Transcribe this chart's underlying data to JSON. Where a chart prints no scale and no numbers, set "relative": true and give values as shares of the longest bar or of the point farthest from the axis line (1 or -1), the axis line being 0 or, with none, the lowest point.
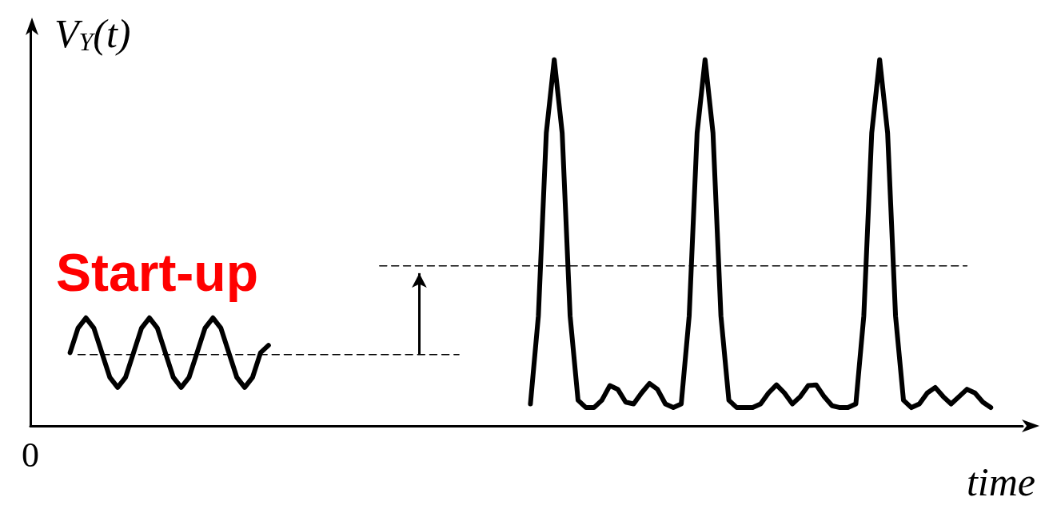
{
  "chart_data": {
    "type": "line",
    "relative": true,
    "ylabel": "V$_{Y}$(t)",
    "xlabel": "time",
    "grid": false,
    "marker": "none",
    "line_style": "solid",
    "annotations": [
      "Start-up",
      "0"
    ],
    "categories": [
      null,
      null,
      null,
      null,
      null,
      null,
      null,
      null,
      null,
      null,
      null,
      null,
      null,
      null,
      null,
      null,
      null,
      null,
      null,
      null,
      null,
      null,
      null,
      null,
      null,
      null,
      null,
      null,
      null,
      null,
      null,
      null,
      null,
      null,
      null,
      null,
      null,
      null,
      null,
      null,
      null,
      null,
      null,
      null,
      null,
      null,
      null,
      null,
      null,
      null,
      null,
      null,
      null,
      null,
      null,
      null,
      null,
      null,
      null,
      null,
      null,
      null,
      null,
      null,
      null,
      null,
      null,
      null,
      null,
      null,
      null,
      null,
      null,
      null,
      null,
      null,
      null,
      null,
      null,
      null,
      null,
      null,
      null,
      null,
      null,
      null,
      null,
      null,
      null,
      null,
      null,
      null,
      null,
      null,
      null,
      null,
      null,
      null,
      null,
      null,
      null,
      null,
      null,
      null,
      null,
      null,
      null,
      null,
      null,
      null,
      null,
      null,
      null,
      null,
      null,
      null,
      null,
      null,
      null,
      null,
      null,
      null,
      null,
      null,
      null,
      null
    ],
    "series": [
      {
        "color": "#000000",
        "values": [
          null,
          null,
          null,
          null,
          null,
          0.2,
          0.267,
          0.295,
          0.267,
          0.2,
          0.133,
          0.105,
          0.133,
          0.2,
          0.267,
          0.295,
          0.267,
          0.2,
          0.133,
          0.105,
          0.133,
          0.2,
          0.267,
          0.295,
          0.267,
          0.2,
          0.133,
          0.105,
          0.133,
          0.2,
          0.22,
          null,
          null,
          null,
          null,
          null,
          null,
          null,
          null,
          null,
          null,
          null,
          null,
          null,
          null,
          null,
          null,
          null,
          null,
          null,
          null,
          null,
          null,
          null,
          null,
          null,
          null,
          null,
          null,
          null,
          null,
          null,
          null,
          null,
          null,
          null,
          null,
          null,
          null,
          null,
          null,
          null,
          null,
          null,
          null,
          null,
          null,
          null,
          null,
          null,
          null,
          null,
          null,
          null,
          null,
          null,
          null,
          null,
          null,
          null,
          null,
          null,
          null,
          null,
          null,
          null,
          null,
          null,
          null,
          null,
          null,
          null,
          null,
          null,
          null,
          null,
          null,
          null,
          null,
          null,
          null,
          null,
          null,
          null,
          null,
          null,
          null,
          null,
          null,
          null,
          null,
          null,
          null,
          null,
          null,
          null
        ]
      },
      {
        "color": "#000000",
        "values": [
          null,
          null,
          null,
          null,
          null,
          null,
          null,
          null,
          null,
          null,
          null,
          null,
          null,
          null,
          null,
          null,
          null,
          null,
          null,
          null,
          null,
          null,
          null,
          null,
          null,
          null,
          null,
          null,
          null,
          null,
          null,
          null,
          null,
          null,
          null,
          null,
          null,
          null,
          null,
          null,
          null,
          null,
          null,
          null,
          null,
          null,
          null,
          null,
          null,
          null,
          null,
          null,
          null,
          null,
          null,
          null,
          null,
          null,
          null,
          null,
          null,
          null,
          null,
          0.06,
          0.3,
          0.8,
          1,
          0.8,
          0.3,
          0.07,
          0.05,
          0.05,
          0.07,
          0.11,
          0.1,
          0.065,
          0.06,
          0.09,
          0.116,
          0.1,
          0.06,
          0.05,
          0.06,
          0.3,
          0.8,
          1,
          0.8,
          0.3,
          0.07,
          0.05,
          0.05,
          0.05,
          0.06,
          0.09,
          0.112,
          0.09,
          0.06,
          0.08,
          0.11,
          0.112,
          0.08,
          0.055,
          0.05,
          0.05,
          0.06,
          0.3,
          0.8,
          1,
          0.8,
          0.3,
          0.07,
          0.05,
          0.06,
          0.09,
          0.105,
          0.08,
          0.06,
          0.08,
          0.1,
          0.09,
          0.065,
          0.05,
          null,
          null,
          null,
          null
        ]
      },
      {
        "color": "#000000",
        "line_style": "dashed",
        "values": [
          null,
          null,
          null,
          null,
          null,
          null,
          0.195,
          0.195,
          0.195,
          0.195,
          0.195,
          0.195,
          0.195,
          0.195,
          0.195,
          0.195,
          0.195,
          0.195,
          0.195,
          0.195,
          0.195,
          0.195,
          0.195,
          0.195,
          0.195,
          0.195,
          0.195,
          0.195,
          0.195,
          0.195,
          0.195,
          0.195,
          0.195,
          0.195,
          0.195,
          0.195,
          0.195,
          0.195,
          0.195,
          0.195,
          0.195,
          0.195,
          0.195,
          0.195,
          0.195,
          0.195,
          0.195,
          0.195,
          0.195,
          0.195,
          0.195,
          0.195,
          0.195,
          0.195,
          0.195,
          null,
          null,
          null,
          null,
          null,
          null,
          null,
          null,
          null,
          null,
          null,
          null,
          null,
          null,
          null,
          null,
          null,
          null,
          null,
          null,
          null,
          null,
          null,
          null,
          null,
          null,
          null,
          null,
          null,
          null,
          null,
          null,
          null,
          null,
          null,
          null,
          null,
          null,
          null,
          null,
          null,
          null,
          null,
          null,
          null,
          null,
          null,
          null,
          null,
          null,
          null,
          null,
          null,
          null,
          null,
          null,
          null,
          null,
          null,
          null,
          null,
          null,
          null,
          null,
          null,
          null,
          null,
          null,
          null,
          null,
          null
        ]
      },
      {
        "color": "#000000",
        "line_style": "dashed",
        "values": [
          null,
          null,
          null,
          null,
          null,
          null,
          null,
          null,
          null,
          null,
          null,
          null,
          null,
          null,
          null,
          null,
          null,
          null,
          null,
          null,
          null,
          null,
          null,
          null,
          null,
          null,
          null,
          null,
          null,
          null,
          null,
          null,
          null,
          null,
          null,
          null,
          null,
          null,
          null,
          null,
          null,
          null,
          null,
          null,
          0.437,
          0.437,
          0.437,
          0.437,
          0.437,
          0.437,
          0.437,
          0.437,
          0.437,
          0.437,
          0.437,
          0.437,
          0.437,
          0.437,
          0.437,
          0.437,
          0.437,
          0.437,
          0.437,
          0.437,
          0.437,
          0.437,
          0.437,
          0.437,
          0.437,
          0.437,
          0.437,
          0.437,
          0.437,
          0.437,
          0.437,
          0.437,
          0.437,
          0.437,
          0.437,
          0.437,
          0.437,
          0.437,
          0.437,
          0.437,
          0.437,
          0.437,
          0.437,
          0.437,
          0.437,
          0.437,
          0.437,
          0.437,
          0.437,
          0.437,
          0.437,
          0.437,
          0.437,
          0.437,
          0.437,
          0.437,
          0.437,
          0.437,
          0.437,
          0.437,
          0.437,
          0.437,
          0.437,
          0.437,
          0.437,
          0.437,
          0.437,
          0.437,
          0.437,
          0.437,
          0.437,
          0.437,
          0.437,
          0.437,
          0.437,
          null,
          null,
          null,
          null,
          null,
          null,
          null
        ]
      }
    ]
  }
}
